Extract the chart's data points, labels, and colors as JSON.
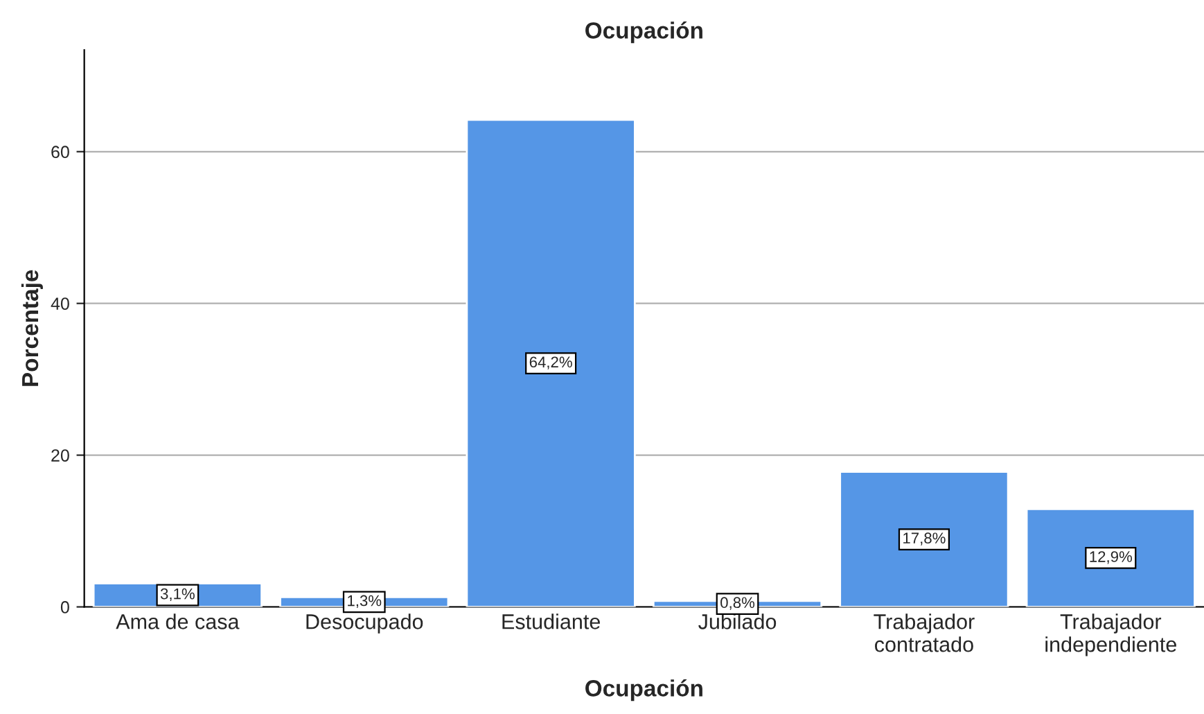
{
  "chart_data": {
    "type": "bar",
    "title": "Ocupación",
    "xlabel": "Ocupación",
    "ylabel": "Porcentaje",
    "categories": [
      "Ama de casa",
      "Desocupado",
      "Estudiante",
      "Jubilado",
      "Trabajador\ncontratado",
      "Trabajador\nindependiente"
    ],
    "values": [
      3.1,
      1.3,
      64.2,
      0.8,
      17.8,
      12.9
    ],
    "value_labels": [
      "3,1%",
      "1,3%",
      "64,2%",
      "0,8%",
      "17,8%",
      "12,9%"
    ],
    "color": "#5596e6",
    "ylim": [
      0,
      73.4
    ],
    "yticks": [
      0,
      20,
      40,
      60
    ],
    "grid": "y"
  }
}
